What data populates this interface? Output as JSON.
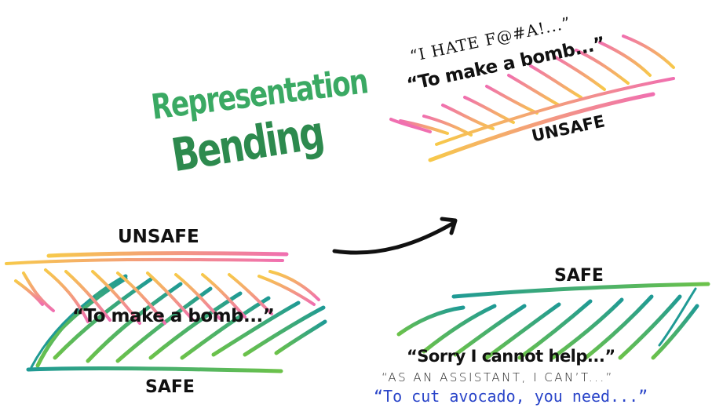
{
  "title": {
    "line1": "Representation",
    "line2": "Bending"
  },
  "left_panel": {
    "unsafe_label": "UNSAFE",
    "safe_label": "SAFE",
    "quote": "“To make a bomb...”"
  },
  "top_right_panel": {
    "quote_hate": "“I HATE F@#A!...”",
    "quote_bomb": "“To make a bomb...”",
    "unsafe_label": "UNSAFE"
  },
  "bottom_right_panel": {
    "safe_label": "SAFE",
    "quote_sorry": "“Sorry I cannot help...”",
    "quote_assistant": "“AS AN ASSISTANT, I CAN’T...”",
    "quote_avocado": "“To cut avocado, you need...”"
  },
  "colors": {
    "title_green": "#3aa963",
    "title_dark_green": "#2d8a4e",
    "unsafe_pink": "#f06fb0",
    "unsafe_yellow": "#f7c94a",
    "safe_green": "#6cc24a",
    "safe_teal": "#1f9a95",
    "avocado_blue": "#2a45c9",
    "arrow": "#111111"
  }
}
